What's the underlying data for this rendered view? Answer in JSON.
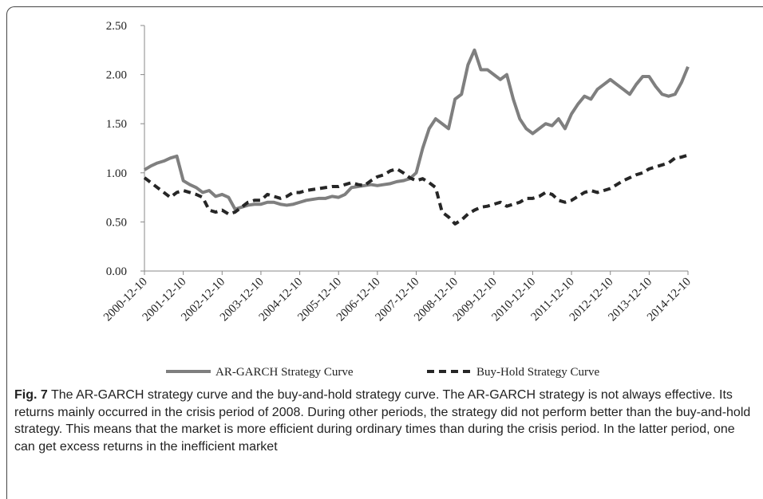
{
  "chart_data": {
    "type": "line",
    "categories": [
      "2000-12-10",
      null,
      null,
      null,
      null,
      null,
      "2001-12-10",
      null,
      null,
      null,
      null,
      null,
      "2002-12-10",
      null,
      null,
      null,
      null,
      null,
      "2003-12-10",
      null,
      null,
      null,
      null,
      null,
      "2004-12-10",
      null,
      null,
      null,
      null,
      null,
      "2005-12-10",
      null,
      null,
      null,
      null,
      null,
      "2006-12-10",
      null,
      null,
      null,
      null,
      null,
      "2007-12-10",
      null,
      null,
      null,
      null,
      null,
      "2008-12-10",
      null,
      null,
      null,
      null,
      null,
      "2009-12-10",
      null,
      null,
      null,
      null,
      null,
      "2010-12-10",
      null,
      null,
      null,
      null,
      null,
      "2011-12-10",
      null,
      null,
      null,
      null,
      null,
      "2012-12-10",
      null,
      null,
      null,
      null,
      null,
      "2013-12-10",
      null,
      null,
      null,
      null,
      null,
      "2014-12-10"
    ],
    "series": [
      {
        "name": "AR-GARCH Strategy Curve",
        "color": "#7f7f7f",
        "style": "solid",
        "values": [
          1.03,
          1.07,
          1.1,
          1.12,
          1.15,
          1.17,
          0.92,
          0.88,
          0.85,
          0.8,
          0.82,
          0.76,
          0.78,
          0.75,
          0.63,
          0.65,
          0.67,
          0.68,
          0.68,
          0.7,
          0.7,
          0.68,
          0.67,
          0.68,
          0.7,
          0.72,
          0.73,
          0.74,
          0.74,
          0.76,
          0.75,
          0.78,
          0.85,
          0.86,
          0.87,
          0.88,
          0.87,
          0.88,
          0.89,
          0.91,
          0.92,
          0.94,
          1.0,
          1.25,
          1.45,
          1.55,
          1.5,
          1.45,
          1.75,
          1.8,
          2.1,
          2.25,
          2.05,
          2.05,
          2.0,
          1.95,
          2.0,
          1.75,
          1.55,
          1.45,
          1.4,
          1.45,
          1.5,
          1.48,
          1.55,
          1.45,
          1.6,
          1.7,
          1.78,
          1.75,
          1.85,
          1.9,
          1.95,
          1.9,
          1.85,
          1.8,
          1.9,
          1.98,
          1.98,
          1.88,
          1.8,
          1.78,
          1.8,
          1.92,
          2.08
        ]
      },
      {
        "name": "Buy-Hold Strategy Curve",
        "color": "#262626",
        "style": "dashed",
        "values": [
          0.95,
          0.9,
          0.85,
          0.8,
          0.75,
          0.8,
          0.82,
          0.8,
          0.78,
          0.75,
          0.62,
          0.6,
          0.62,
          0.58,
          0.6,
          0.65,
          0.7,
          0.72,
          0.72,
          0.78,
          0.76,
          0.74,
          0.76,
          0.8,
          0.8,
          0.82,
          0.83,
          0.84,
          0.85,
          0.86,
          0.86,
          0.88,
          0.9,
          0.88,
          0.87,
          0.92,
          0.96,
          0.98,
          1.02,
          1.04,
          1.0,
          0.95,
          0.92,
          0.94,
          0.9,
          0.85,
          0.6,
          0.55,
          0.48,
          0.52,
          0.58,
          0.62,
          0.65,
          0.66,
          0.68,
          0.7,
          0.66,
          0.68,
          0.7,
          0.74,
          0.74,
          0.76,
          0.8,
          0.78,
          0.72,
          0.7,
          0.72,
          0.76,
          0.8,
          0.82,
          0.8,
          0.82,
          0.84,
          0.88,
          0.92,
          0.95,
          0.98,
          1.0,
          1.04,
          1.06,
          1.08,
          1.1,
          1.15,
          1.16,
          1.18
        ]
      }
    ],
    "ylim": [
      0,
      2.5
    ],
    "yticks": [
      {
        "value": 0,
        "label": "0.00"
      },
      {
        "value": 0.5,
        "label": "0.50"
      },
      {
        "value": 1,
        "label": "1.00"
      },
      {
        "value": 1.5,
        "label": "1.50"
      },
      {
        "value": 2,
        "label": "2.00"
      },
      {
        "value": 2.5,
        "label": "2.50"
      }
    ],
    "grid": false,
    "legend": "bottom"
  },
  "caption": {
    "label": "Fig. 7",
    "text": "The AR-GARCH strategy curve and the buy-and-hold strategy curve. The AR-GARCH strategy is not always effective. Its returns mainly occurred in the crisis period of 2008. During other periods, the strategy did not perform better than the buy-and-hold strategy. This means that the market is more efficient during ordinary times than during the crisis period. In the latter period, one can get excess returns in the inefficient market"
  }
}
